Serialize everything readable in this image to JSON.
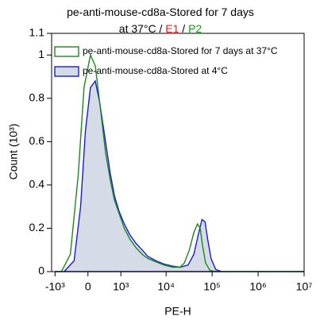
{
  "chart_data": {
    "type": "histogram-line",
    "title_lines": [
      [
        {
          "text": "pe-anti-mouse-cd8a-Stored for 7 days",
          "color": "#000000"
        }
      ],
      [
        {
          "text": "at 37°C / ",
          "color": "#000000"
        },
        {
          "text": "E1",
          "color": "#e02020"
        },
        {
          "text": " / ",
          "color": "#000000"
        },
        {
          "text": "P2",
          "color": "#1a9a1a"
        }
      ]
    ],
    "x_label": "PE-H",
    "y_label": "Count (10³)",
    "xscale": "asinh",
    "xlim": [
      -1200,
      10000000
    ],
    "xticks": [
      {
        "value": -1000,
        "label": "-10³"
      },
      0,
      {
        "value": 1000,
        "label": "10³"
      },
      {
        "value": 10000,
        "label": "10⁴"
      },
      {
        "value": 100000,
        "label": "10⁵"
      },
      {
        "value": 1000000,
        "label": "10⁶"
      },
      {
        "value": 10000000,
        "label": "10⁷"
      }
    ],
    "ylim": [
      0,
      1.1
    ],
    "yticks": [
      0,
      0.2,
      0.4,
      0.6,
      0.8,
      1,
      1.1
    ],
    "legend": "top-left",
    "series": [
      {
        "name": "pe-anti-mouse-cd8a-Stored for 7 days at 37°C",
        "color": "#1a8a1a",
        "fill": "none",
        "x": [
          -1000,
          -700,
          -400,
          -200,
          -80,
          50,
          150,
          250,
          400,
          550,
          700,
          900,
          1200,
          1600,
          2200,
          3000,
          4000,
          6000,
          9000,
          14000,
          20000,
          25000,
          32000,
          40000,
          48000,
          55000,
          62000,
          72000,
          90000,
          120000,
          10000000
        ],
        "values": [
          0,
          0,
          0.08,
          0.45,
          0.85,
          1.0,
          0.95,
          0.78,
          0.55,
          0.42,
          0.33,
          0.27,
          0.2,
          0.15,
          0.11,
          0.08,
          0.06,
          0.045,
          0.03,
          0.02,
          0.02,
          0.04,
          0.1,
          0.18,
          0.22,
          0.2,
          0.12,
          0.04,
          0.005,
          0,
          0
        ]
      },
      {
        "name": "pe-anti-mouse-cd8a-Stored at 4°C",
        "color": "#1a1adc",
        "fill": "#d5dce8",
        "x": [
          -1000,
          -600,
          -300,
          -150,
          -50,
          50,
          150,
          250,
          400,
          550,
          700,
          900,
          1200,
          1600,
          2200,
          3000,
          4000,
          6000,
          9000,
          14000,
          20000,
          30000,
          40000,
          50000,
          60000,
          70000,
          80000,
          95000,
          120000,
          160000,
          10000000
        ],
        "values": [
          0,
          0,
          0.05,
          0.3,
          0.65,
          0.85,
          0.88,
          0.78,
          0.6,
          0.45,
          0.35,
          0.28,
          0.22,
          0.17,
          0.13,
          0.1,
          0.07,
          0.05,
          0.035,
          0.025,
          0.02,
          0.03,
          0.08,
          0.17,
          0.24,
          0.23,
          0.15,
          0.06,
          0.01,
          0,
          0
        ]
      }
    ]
  }
}
